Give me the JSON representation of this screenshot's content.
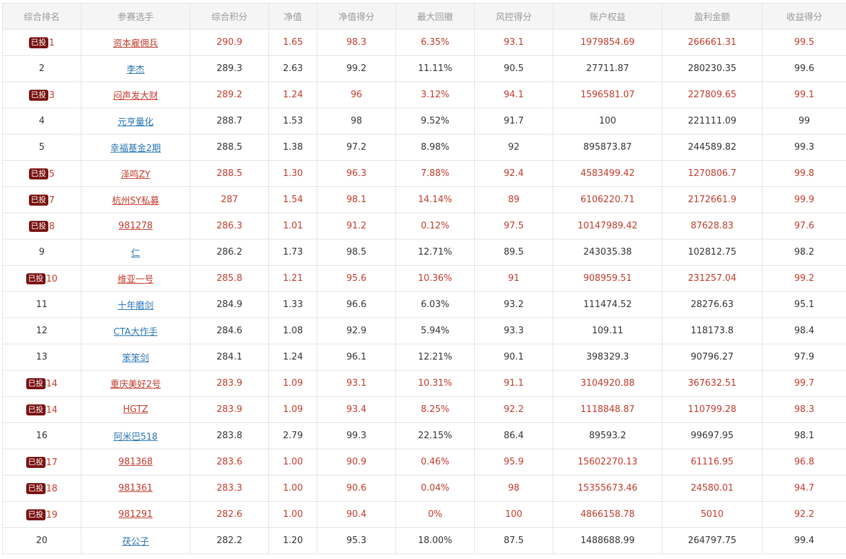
{
  "colors": {
    "header_bg": "#f5f5f5",
    "header_text": "#999999",
    "invested_text": "#c23a2a",
    "link_blue": "#2a76b5",
    "badge_bg": "#7a1212",
    "border": "#e4e4e4"
  },
  "table": {
    "headers": [
      "综合排名",
      "参赛选手",
      "综合积分",
      "净值",
      "净值得分",
      "最大回撤",
      "风控得分",
      "账户权益",
      "盈利金额",
      "收益得分"
    ],
    "badge_label": "已投",
    "rows": [
      {
        "invested": true,
        "rank": "1",
        "player": "资本雇佣兵",
        "score": "290.9",
        "nav": "1.65",
        "nav_score": "98.3",
        "max_drawdown": "6.35%",
        "risk_score": "93.1",
        "equity": "1979854.69",
        "profit": "266661.31",
        "return_score": "99.5"
      },
      {
        "invested": false,
        "rank": "2",
        "player": "李杰",
        "score": "289.3",
        "nav": "2.63",
        "nav_score": "99.2",
        "max_drawdown": "11.11%",
        "risk_score": "90.5",
        "equity": "27711.87",
        "profit": "280230.35",
        "return_score": "99.6"
      },
      {
        "invested": true,
        "rank": "3",
        "player": "闷声发大财",
        "score": "289.2",
        "nav": "1.24",
        "nav_score": "96",
        "max_drawdown": "3.12%",
        "risk_score": "94.1",
        "equity": "1596581.07",
        "profit": "227809.65",
        "return_score": "99.1"
      },
      {
        "invested": false,
        "rank": "4",
        "player": "元亨量化",
        "score": "288.7",
        "nav": "1.53",
        "nav_score": "98",
        "max_drawdown": "9.52%",
        "risk_score": "91.7",
        "equity": "100",
        "profit": "221111.09",
        "return_score": "99"
      },
      {
        "invested": false,
        "rank": "5",
        "player": "幸福基金2期",
        "score": "288.5",
        "nav": "1.38",
        "nav_score": "97.2",
        "max_drawdown": "8.98%",
        "risk_score": "92",
        "equity": "895873.87",
        "profit": "244589.82",
        "return_score": "99.3"
      },
      {
        "invested": true,
        "rank": "5",
        "player": "泽鸣ZY",
        "score": "288.5",
        "nav": "1.30",
        "nav_score": "96.3",
        "max_drawdown": "7.88%",
        "risk_score": "92.4",
        "equity": "4583499.42",
        "profit": "1270806.7",
        "return_score": "99.8"
      },
      {
        "invested": true,
        "rank": "7",
        "player": "杭州SY私募",
        "score": "287",
        "nav": "1.54",
        "nav_score": "98.1",
        "max_drawdown": "14.14%",
        "risk_score": "89",
        "equity": "6106220.71",
        "profit": "2172661.9",
        "return_score": "99.9"
      },
      {
        "invested": true,
        "rank": "8",
        "player": "981278",
        "score": "286.3",
        "nav": "1.01",
        "nav_score": "91.2",
        "max_drawdown": "0.12%",
        "risk_score": "97.5",
        "equity": "10147989.42",
        "profit": "87628.83",
        "return_score": "97.6"
      },
      {
        "invested": false,
        "rank": "9",
        "player": "仁",
        "score": "286.2",
        "nav": "1.73",
        "nav_score": "98.5",
        "max_drawdown": "12.71%",
        "risk_score": "89.5",
        "equity": "243035.38",
        "profit": "102812.75",
        "return_score": "98.2"
      },
      {
        "invested": true,
        "rank": "10",
        "player": "维亚一号",
        "score": "285.8",
        "nav": "1.21",
        "nav_score": "95.6",
        "max_drawdown": "10.36%",
        "risk_score": "91",
        "equity": "908959.51",
        "profit": "231257.04",
        "return_score": "99.2"
      },
      {
        "invested": false,
        "rank": "11",
        "player": "十年磨剑",
        "score": "284.9",
        "nav": "1.33",
        "nav_score": "96.6",
        "max_drawdown": "6.03%",
        "risk_score": "93.2",
        "equity": "111474.52",
        "profit": "28276.63",
        "return_score": "95.1"
      },
      {
        "invested": false,
        "rank": "12",
        "player": "CTA大作手",
        "score": "284.6",
        "nav": "1.08",
        "nav_score": "92.9",
        "max_drawdown": "5.94%",
        "risk_score": "93.3",
        "equity": "109.11",
        "profit": "118173.8",
        "return_score": "98.4"
      },
      {
        "invested": false,
        "rank": "13",
        "player": "笨笨剑",
        "score": "284.1",
        "nav": "1.24",
        "nav_score": "96.1",
        "max_drawdown": "12.21%",
        "risk_score": "90.1",
        "equity": "398329.3",
        "profit": "90796.27",
        "return_score": "97.9"
      },
      {
        "invested": true,
        "rank": "14",
        "player": "重庆美好2号",
        "score": "283.9",
        "nav": "1.09",
        "nav_score": "93.1",
        "max_drawdown": "10.31%",
        "risk_score": "91.1",
        "equity": "3104920.88",
        "profit": "367632.51",
        "return_score": "99.7"
      },
      {
        "invested": true,
        "rank": "14",
        "player": "HGTZ",
        "score": "283.9",
        "nav": "1.09",
        "nav_score": "93.4",
        "max_drawdown": "8.25%",
        "risk_score": "92.2",
        "equity": "1118848.87",
        "profit": "110799.28",
        "return_score": "98.3"
      },
      {
        "invested": false,
        "rank": "16",
        "player": "阿米巴518",
        "score": "283.8",
        "nav": "2.79",
        "nav_score": "99.3",
        "max_drawdown": "22.15%",
        "risk_score": "86.4",
        "equity": "89593.2",
        "profit": "99697.95",
        "return_score": "98.1"
      },
      {
        "invested": true,
        "rank": "17",
        "player": "981368",
        "score": "283.6",
        "nav": "1.00",
        "nav_score": "90.9",
        "max_drawdown": "0.46%",
        "risk_score": "95.9",
        "equity": "15602270.13",
        "profit": "61116.95",
        "return_score": "96.8"
      },
      {
        "invested": true,
        "rank": "18",
        "player": "981361",
        "score": "283.3",
        "nav": "1.00",
        "nav_score": "90.6",
        "max_drawdown": "0.04%",
        "risk_score": "98",
        "equity": "15355673.46",
        "profit": "24580.01",
        "return_score": "94.7"
      },
      {
        "invested": true,
        "rank": "19",
        "player": "981291",
        "score": "282.6",
        "nav": "1.00",
        "nav_score": "90.4",
        "max_drawdown": "0%",
        "risk_score": "100",
        "equity": "4866158.78",
        "profit": "5010",
        "return_score": "92.2"
      },
      {
        "invested": false,
        "rank": "20",
        "player": "茯公子",
        "score": "282.2",
        "nav": "1.20",
        "nav_score": "95.3",
        "max_drawdown": "18.00%",
        "risk_score": "87.5",
        "equity": "1488688.99",
        "profit": "264797.75",
        "return_score": "99.4"
      }
    ]
  }
}
